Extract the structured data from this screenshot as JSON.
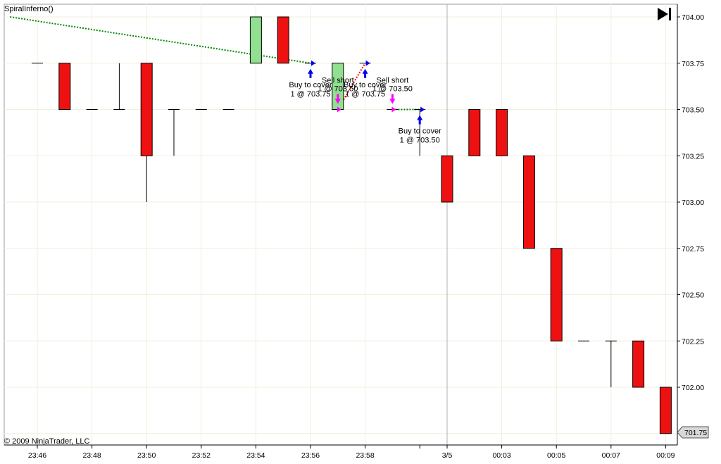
{
  "strategy_label": "SpiralInferno()",
  "copyright": "© 2009 NinjaTrader, LLC",
  "colors": {
    "up": "#90e090",
    "down": "#ee1111",
    "entry_arrow": "#ff00ff",
    "exit_arrow": "#0000ee",
    "win_line": "#008800",
    "loss_line": "#ee0000",
    "grid": "#f0efdc"
  },
  "chart_data": {
    "type": "candlestick",
    "title": "",
    "xlabel": "",
    "ylabel": "",
    "ylim": [
      701.75,
      704.0
    ],
    "y_ticks": [
      "704.00",
      "703.75",
      "703.50",
      "703.25",
      "703.00",
      "702.75",
      "702.50",
      "702.25",
      "702.00"
    ],
    "last_price": "701.75",
    "x_labels": [
      "23:46",
      "23:48",
      "23:50",
      "23:52",
      "23:54",
      "23:56",
      "23:58",
      "3/5",
      "00:03",
      "00:05",
      "00:07",
      "00:09"
    ],
    "session_break_label": "3/5",
    "bars": [
      {
        "t": "23:46",
        "o": 703.75,
        "h": 703.75,
        "l": 703.75,
        "c": 703.75
      },
      {
        "t": "23:47",
        "o": 703.75,
        "h": 703.75,
        "l": 703.5,
        "c": 703.5
      },
      {
        "t": "23:48",
        "o": 703.5,
        "h": 703.5,
        "l": 703.5,
        "c": 703.5
      },
      {
        "t": "23:49",
        "o": 703.5,
        "h": 703.75,
        "l": 703.5,
        "c": 703.5
      },
      {
        "t": "23:50",
        "o": 703.75,
        "h": 703.75,
        "l": 703.0,
        "c": 703.25
      },
      {
        "t": "23:51",
        "o": 703.5,
        "h": 703.5,
        "l": 703.25,
        "c": 703.5
      },
      {
        "t": "23:52",
        "o": 703.5,
        "h": 703.5,
        "l": 703.5,
        "c": 703.5
      },
      {
        "t": "23:53",
        "o": 703.5,
        "h": 703.5,
        "l": 703.5,
        "c": 703.5
      },
      {
        "t": "23:54",
        "o": 703.75,
        "h": 704.0,
        "l": 703.75,
        "c": 704.0
      },
      {
        "t": "23:55",
        "o": 704.0,
        "h": 704.0,
        "l": 703.75,
        "c": 703.75
      },
      {
        "t": "23:56",
        "o": 703.75,
        "h": 703.75,
        "l": 703.75,
        "c": 703.75
      },
      {
        "t": "23:57",
        "o": 703.5,
        "h": 703.75,
        "l": 703.5,
        "c": 703.75
      },
      {
        "t": "23:58",
        "o": 703.75,
        "h": 703.75,
        "l": 703.75,
        "c": 703.75
      },
      {
        "t": "23:59",
        "o": 703.5,
        "h": 703.5,
        "l": 703.5,
        "c": 703.5
      },
      {
        "t": "00:00",
        "o": 703.5,
        "h": 703.5,
        "l": 703.25,
        "c": 703.5
      },
      {
        "t": "00:01",
        "o": 703.25,
        "h": 703.25,
        "l": 703.0,
        "c": 703.0
      },
      {
        "t": "00:02",
        "o": 703.5,
        "h": 703.5,
        "l": 703.25,
        "c": 703.25
      },
      {
        "t": "00:03",
        "o": 703.5,
        "h": 703.5,
        "l": 703.25,
        "c": 703.25
      },
      {
        "t": "00:04",
        "o": 703.25,
        "h": 703.25,
        "l": 702.75,
        "c": 702.75
      },
      {
        "t": "00:05",
        "o": 702.75,
        "h": 702.75,
        "l": 702.25,
        "c": 702.25
      },
      {
        "t": "00:06",
        "o": 702.25,
        "h": 702.25,
        "l": 702.25,
        "c": 702.25
      },
      {
        "t": "00:07",
        "o": 702.25,
        "h": 702.25,
        "l": 702.0,
        "c": 702.25
      },
      {
        "t": "00:08",
        "o": 702.25,
        "h": 702.25,
        "l": 702.0,
        "c": 702.0
      },
      {
        "t": "00:09",
        "o": 702.0,
        "h": 702.0,
        "l": 701.75,
        "c": 701.75
      }
    ],
    "trades": [
      {
        "entry_t": "23:45",
        "entry_price": 704.0,
        "exit_t": "23:56",
        "exit_price": 703.75,
        "result": "win"
      },
      {
        "entry_t": "23:57",
        "entry_price": 703.5,
        "exit_t": "23:58",
        "exit_price": 703.75,
        "result": "loss"
      },
      {
        "entry_t": "23:59",
        "entry_price": 703.5,
        "exit_t": "00:00",
        "exit_price": 703.5,
        "result": "flat"
      }
    ],
    "annotations": [
      {
        "t": "23:56",
        "price": 703.75,
        "side": "exit",
        "line1": "Buy to cover",
        "line2": "1 @ 703.75"
      },
      {
        "t": "23:57",
        "price": 703.5,
        "side": "entry",
        "line1": "Sell short",
        "line2": "1 @ 703.50"
      },
      {
        "t": "23:58",
        "price": 703.75,
        "side": "exit",
        "line1": "Buy to cover",
        "line2": "1 @ 703.75"
      },
      {
        "t": "23:59",
        "price": 703.5,
        "side": "entry",
        "line1": "Sell short",
        "line2": "1 @ 703.50"
      },
      {
        "t": "00:00",
        "price": 703.5,
        "side": "exit",
        "line1": "Buy to cover",
        "line2": "1 @ 703.50"
      }
    ]
  }
}
